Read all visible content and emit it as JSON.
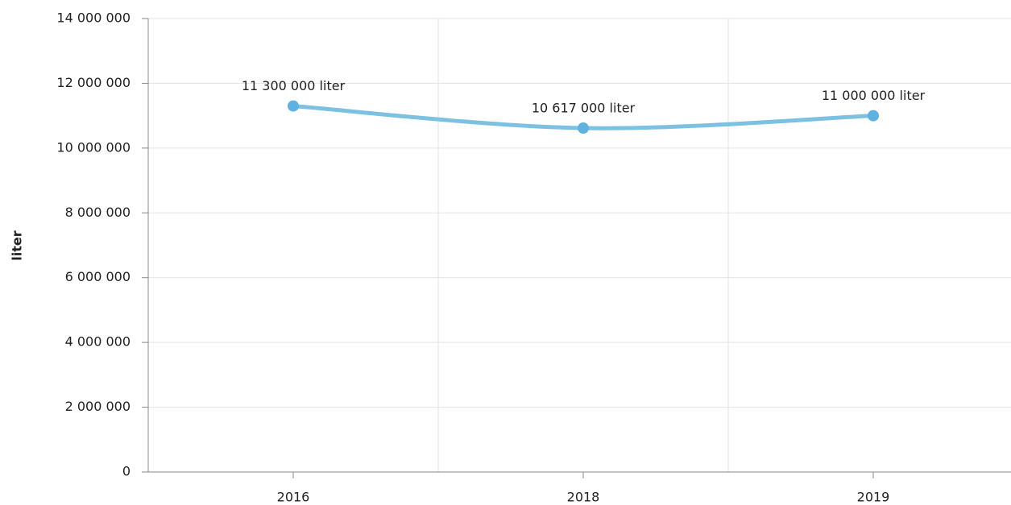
{
  "chart_data": {
    "type": "line",
    "ylabel": "liter",
    "categories": [
      "2016",
      "2018",
      "2019"
    ],
    "series": [
      {
        "name": "liter",
        "color": "#7cc0e2",
        "marker_color": "#5fb1df",
        "values": [
          11300000,
          10617000,
          11000000
        ],
        "value_labels": [
          "11 300 000 liter",
          "10 617 000 liter",
          "11 000 000 liter"
        ]
      }
    ],
    "ylim": [
      0,
      14000000
    ],
    "yticks": [
      0,
      {
        "value": 2000000,
        "label": "2 000 000"
      },
      {
        "value": 4000000,
        "label": "4 000 000"
      },
      {
        "value": 6000000,
        "label": "6 000 000"
      },
      {
        "value": 8000000,
        "label": "8 000 000"
      },
      {
        "value": 10000000,
        "label": "10 000 000"
      },
      {
        "value": 12000000,
        "label": "12 000 000"
      },
      {
        "value": 14000000,
        "label": "14 000 000"
      }
    ],
    "grid": true
  }
}
